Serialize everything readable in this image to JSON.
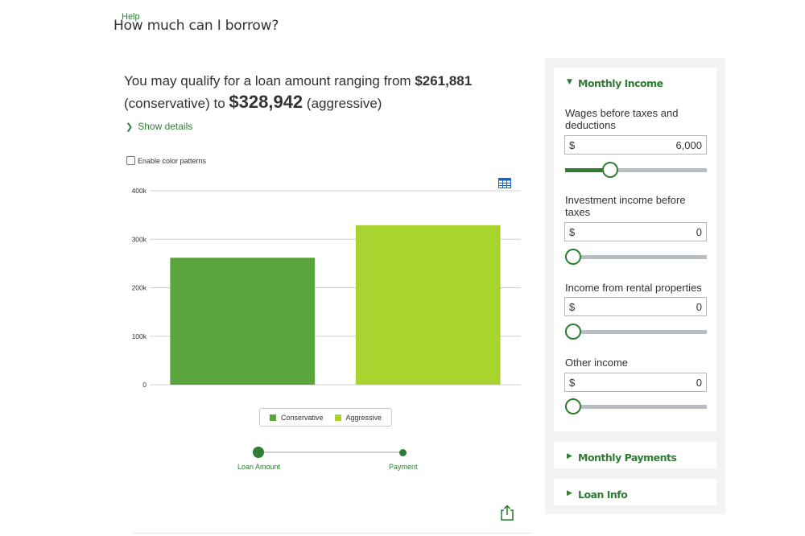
{
  "header": {
    "help_label": "Help",
    "title": "How much can I borrow?"
  },
  "summary": {
    "prefix": "You may qualify for a loan amount ranging from",
    "conservative_amount": "$261,881",
    "conservative_label": "(conservative) to",
    "aggressive_amount": "$328,942",
    "aggressive_label": "(aggressive)",
    "show_details": "Show details"
  },
  "options": {
    "color_patterns_label": "Enable color patterns",
    "color_patterns_checked": false
  },
  "chart_data": {
    "type": "bar",
    "categories": [
      "Conservative",
      "Aggressive"
    ],
    "values": [
      261881,
      328942
    ],
    "colors": [
      "#5aa53c",
      "#a9d42f"
    ],
    "ylim": [
      0,
      400000
    ],
    "y_ticks": [
      0,
      100000,
      200000,
      300000,
      400000
    ],
    "y_tick_labels": [
      "0",
      "100k",
      "200k",
      "300k",
      "400k"
    ],
    "grid": true,
    "legend": "bottom",
    "legend_entries": [
      "Conservative",
      "Aggressive"
    ]
  },
  "view_toggle": {
    "options": [
      "Loan Amount",
      "Payment"
    ],
    "selected": "Loan Amount"
  },
  "icons": {
    "table": "table-icon",
    "share": "share-icon"
  },
  "colors": {
    "brand_green": "#2e7d32",
    "bar_conservative": "#5aa53c",
    "bar_aggressive": "#a9d42f",
    "slider_track": "#b7bec3"
  },
  "panel": {
    "monthly_income": {
      "title": "Monthly Income",
      "expanded": true,
      "fields": [
        {
          "label": "Wages before taxes and deductions",
          "currency": "$",
          "value": "6,000",
          "slider_fraction": 0.32
        },
        {
          "label": "Investment income before taxes",
          "currency": "$",
          "value": "0",
          "slider_fraction": 0
        },
        {
          "label": "Income from rental properties",
          "currency": "$",
          "value": "0",
          "slider_fraction": 0
        },
        {
          "label": "Other income",
          "currency": "$",
          "value": "0",
          "slider_fraction": 0
        }
      ]
    },
    "monthly_payments": {
      "title": "Monthly Payments",
      "expanded": false
    },
    "loan_info": {
      "title": "Loan Info",
      "expanded": false
    }
  }
}
